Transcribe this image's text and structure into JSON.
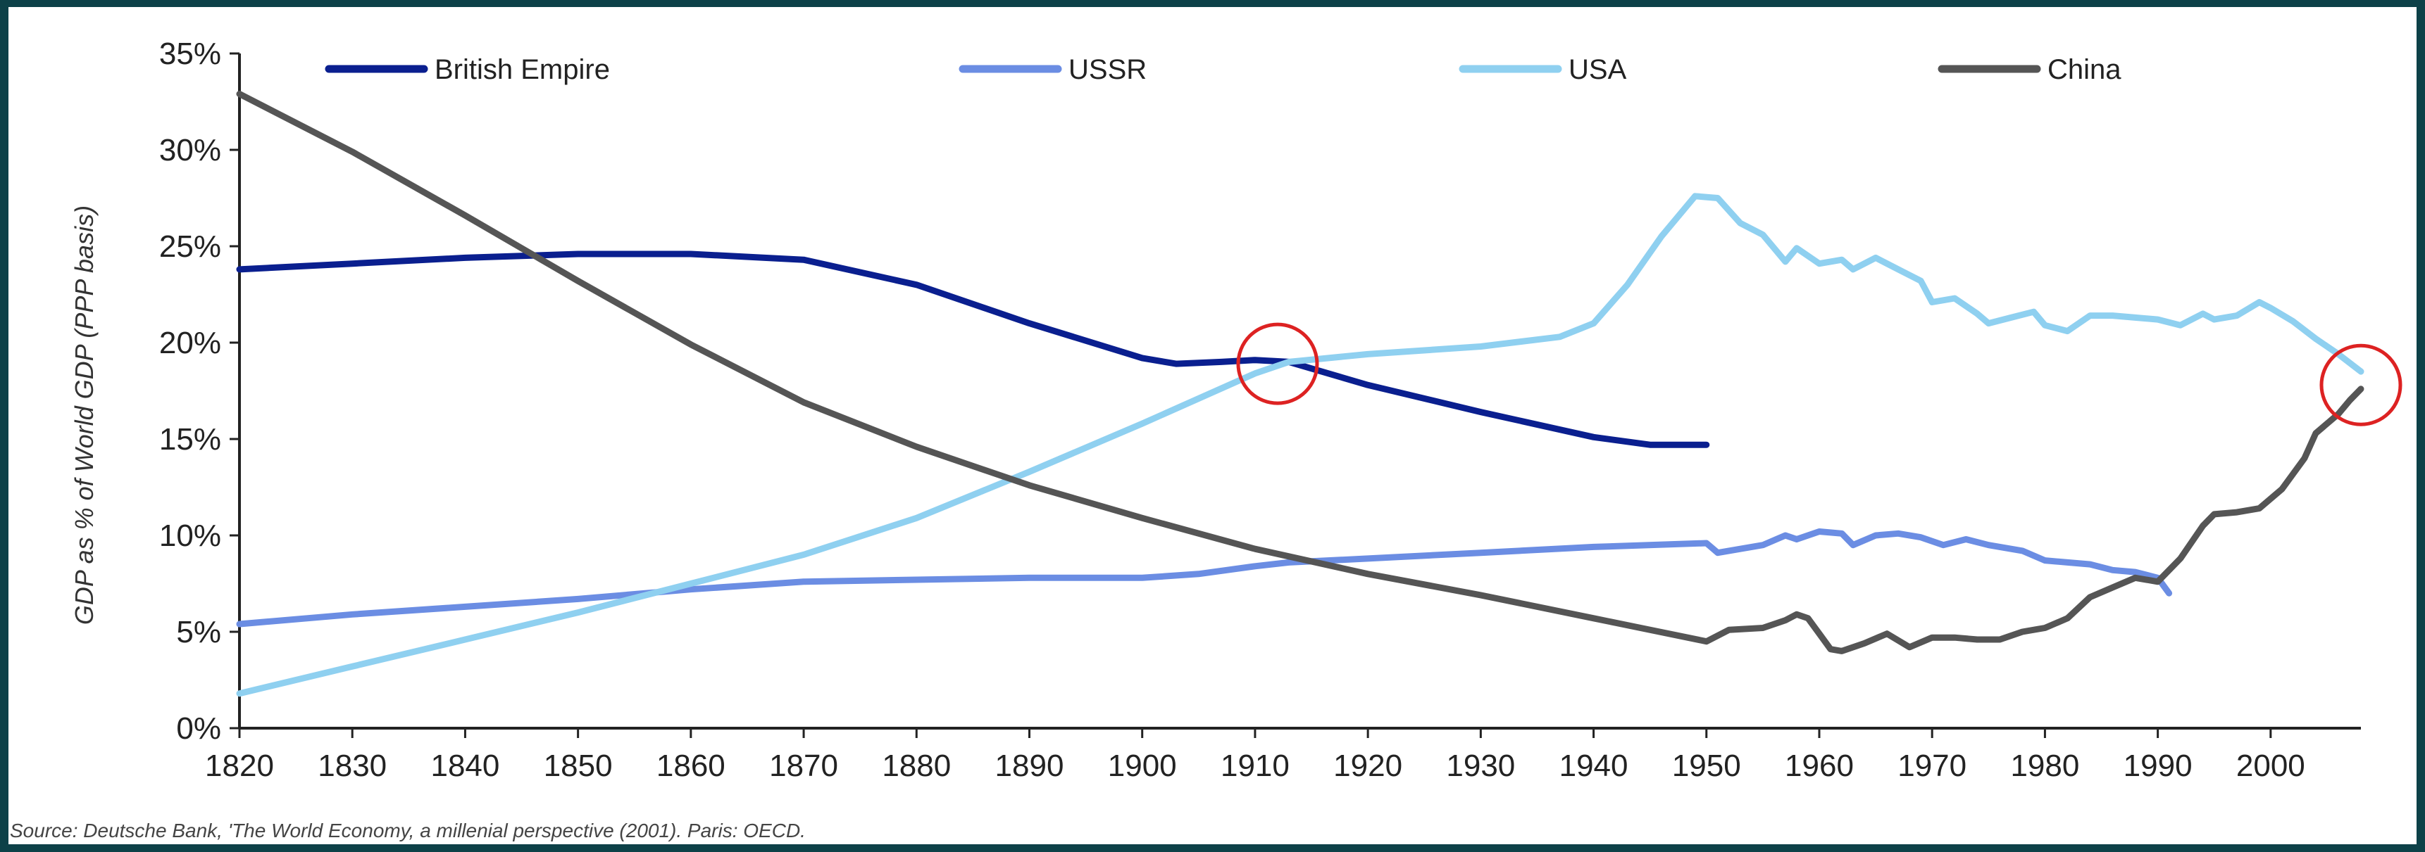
{
  "chart_data": {
    "type": "line",
    "title": "",
    "xlabel": "",
    "ylabel": "GDP as % of World GDP (PPP basis)",
    "xlim": [
      1820,
      2008
    ],
    "ylim": [
      0,
      35
    ],
    "x_ticks": [
      "1820",
      "1830",
      "1840",
      "1850",
      "1860",
      "1870",
      "1880",
      "1890",
      "1900",
      "1910",
      "1920",
      "1930",
      "1940",
      "1950",
      "1960",
      "1970",
      "1980",
      "1990",
      "2000"
    ],
    "y_ticks": [
      "0%",
      "5%",
      "10%",
      "15%",
      "20%",
      "25%",
      "30%",
      "35%"
    ],
    "grid": false,
    "legend_position": "top",
    "series": [
      {
        "name": "British Empire",
        "color": "#0a1f8f",
        "points": [
          [
            1820,
            23.8
          ],
          [
            1830,
            24.1
          ],
          [
            1840,
            24.4
          ],
          [
            1850,
            24.6
          ],
          [
            1860,
            24.6
          ],
          [
            1870,
            24.3
          ],
          [
            1880,
            23.0
          ],
          [
            1890,
            21.0
          ],
          [
            1900,
            19.2
          ],
          [
            1903,
            18.9
          ],
          [
            1907,
            19.0
          ],
          [
            1910,
            19.1
          ],
          [
            1913,
            19.0
          ],
          [
            1920,
            17.8
          ],
          [
            1930,
            16.4
          ],
          [
            1940,
            15.1
          ],
          [
            1945,
            14.7
          ],
          [
            1950,
            14.7
          ]
        ]
      },
      {
        "name": "USSR",
        "color": "#6b8de3",
        "points": [
          [
            1820,
            5.4
          ],
          [
            1830,
            5.9
          ],
          [
            1840,
            6.3
          ],
          [
            1850,
            6.7
          ],
          [
            1860,
            7.2
          ],
          [
            1870,
            7.6
          ],
          [
            1880,
            7.7
          ],
          [
            1890,
            7.8
          ],
          [
            1900,
            7.8
          ],
          [
            1905,
            8.0
          ],
          [
            1910,
            8.4
          ],
          [
            1913,
            8.6
          ],
          [
            1920,
            8.8
          ],
          [
            1930,
            9.1
          ],
          [
            1940,
            9.4
          ],
          [
            1950,
            9.6
          ],
          [
            1951,
            9.1
          ],
          [
            1953,
            9.3
          ],
          [
            1955,
            9.5
          ],
          [
            1957,
            10.0
          ],
          [
            1958,
            9.8
          ],
          [
            1960,
            10.2
          ],
          [
            1962,
            10.1
          ],
          [
            1963,
            9.5
          ],
          [
            1965,
            10.0
          ],
          [
            1967,
            10.1
          ],
          [
            1969,
            9.9
          ],
          [
            1971,
            9.5
          ],
          [
            1973,
            9.8
          ],
          [
            1975,
            9.5
          ],
          [
            1978,
            9.2
          ],
          [
            1980,
            8.7
          ],
          [
            1982,
            8.6
          ],
          [
            1984,
            8.5
          ],
          [
            1986,
            8.2
          ],
          [
            1988,
            8.1
          ],
          [
            1990,
            7.8
          ],
          [
            1991,
            7.0
          ]
        ]
      },
      {
        "name": "USA",
        "color": "#8fd0f0",
        "points": [
          [
            1820,
            1.8
          ],
          [
            1830,
            3.2
          ],
          [
            1840,
            4.6
          ],
          [
            1850,
            6.0
          ],
          [
            1860,
            7.5
          ],
          [
            1870,
            9.0
          ],
          [
            1880,
            10.9
          ],
          [
            1890,
            13.3
          ],
          [
            1900,
            15.8
          ],
          [
            1910,
            18.4
          ],
          [
            1913,
            19.0
          ],
          [
            1920,
            19.4
          ],
          [
            1930,
            19.8
          ],
          [
            1937,
            20.3
          ],
          [
            1940,
            21.0
          ],
          [
            1943,
            23.0
          ],
          [
            1946,
            25.5
          ],
          [
            1949,
            27.6
          ],
          [
            1951,
            27.5
          ],
          [
            1953,
            26.2
          ],
          [
            1955,
            25.6
          ],
          [
            1957,
            24.2
          ],
          [
            1958,
            24.9
          ],
          [
            1960,
            24.1
          ],
          [
            1962,
            24.3
          ],
          [
            1963,
            23.8
          ],
          [
            1965,
            24.4
          ],
          [
            1967,
            23.8
          ],
          [
            1969,
            23.2
          ],
          [
            1970,
            22.1
          ],
          [
            1972,
            22.3
          ],
          [
            1974,
            21.5
          ],
          [
            1975,
            21.0
          ],
          [
            1977,
            21.3
          ],
          [
            1979,
            21.6
          ],
          [
            1980,
            20.9
          ],
          [
            1982,
            20.6
          ],
          [
            1984,
            21.4
          ],
          [
            1986,
            21.4
          ],
          [
            1988,
            21.3
          ],
          [
            1990,
            21.2
          ],
          [
            1992,
            20.9
          ],
          [
            1994,
            21.5
          ],
          [
            1995,
            21.2
          ],
          [
            1997,
            21.4
          ],
          [
            1999,
            22.1
          ],
          [
            2000,
            21.8
          ],
          [
            2002,
            21.1
          ],
          [
            2004,
            20.2
          ],
          [
            2006,
            19.4
          ],
          [
            2008,
            18.5
          ]
        ]
      },
      {
        "name": "China",
        "color": "#555555",
        "points": [
          [
            1820,
            32.9
          ],
          [
            1830,
            29.9
          ],
          [
            1840,
            26.6
          ],
          [
            1850,
            23.2
          ],
          [
            1860,
            19.9
          ],
          [
            1870,
            16.9
          ],
          [
            1880,
            14.6
          ],
          [
            1890,
            12.6
          ],
          [
            1900,
            10.9
          ],
          [
            1910,
            9.3
          ],
          [
            1920,
            8.0
          ],
          [
            1930,
            6.9
          ],
          [
            1940,
            5.7
          ],
          [
            1950,
            4.5
          ],
          [
            1952,
            5.1
          ],
          [
            1955,
            5.2
          ],
          [
            1957,
            5.6
          ],
          [
            1958,
            5.9
          ],
          [
            1959,
            5.7
          ],
          [
            1960,
            4.9
          ],
          [
            1961,
            4.1
          ],
          [
            1962,
            4.0
          ],
          [
            1964,
            4.4
          ],
          [
            1966,
            4.9
          ],
          [
            1968,
            4.2
          ],
          [
            1970,
            4.7
          ],
          [
            1972,
            4.7
          ],
          [
            1974,
            4.6
          ],
          [
            1976,
            4.6
          ],
          [
            1978,
            5.0
          ],
          [
            1980,
            5.2
          ],
          [
            1982,
            5.7
          ],
          [
            1984,
            6.8
          ],
          [
            1986,
            7.3
          ],
          [
            1988,
            7.8
          ],
          [
            1990,
            7.6
          ],
          [
            1992,
            8.8
          ],
          [
            1994,
            10.5
          ],
          [
            1995,
            11.1
          ],
          [
            1997,
            11.2
          ],
          [
            1999,
            11.4
          ],
          [
            2001,
            12.4
          ],
          [
            2003,
            14.0
          ],
          [
            2004,
            15.3
          ],
          [
            2006,
            16.3
          ],
          [
            2007,
            17.0
          ],
          [
            2008,
            17.6
          ]
        ]
      }
    ],
    "annotations": [
      {
        "type": "circle",
        "x": 1912,
        "y": 18.9,
        "color": "#dd2222"
      },
      {
        "type": "circle",
        "x": 2008,
        "y": 17.8,
        "color": "#dd2222"
      }
    ]
  },
  "source_text": "Source: Deutsche Bank, 'The World Economy, a millenial perspective (2001). Paris: OECD."
}
